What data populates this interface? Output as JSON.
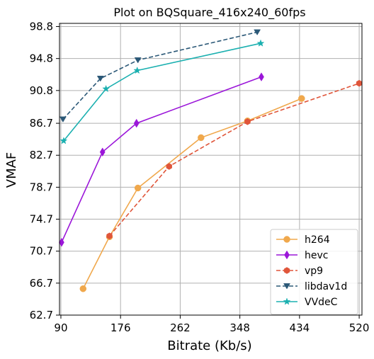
{
  "chart_data": {
    "type": "line",
    "title": "Plot on BQSquare_416x240_60fps",
    "xlabel": "Bitrate (Kb/s)",
    "ylabel": "VMAF",
    "xlim": [
      88,
      524
    ],
    "ylim": [
      62.7,
      99.2
    ],
    "xticks": [
      90,
      176,
      262,
      348,
      434,
      520
    ],
    "yticks": [
      62.7,
      66.7,
      70.7,
      74.7,
      78.7,
      82.7,
      86.7,
      90.8,
      94.8,
      98.8
    ],
    "xtick_labels": [
      "90",
      "176",
      "262",
      "348",
      "434",
      "520"
    ],
    "ytick_labels": [
      "62.7",
      "66.7",
      "70.7",
      "74.7",
      "78.7",
      "82.7",
      "86.7",
      "90.8",
      "94.8",
      "98.8"
    ],
    "grid": true,
    "legend_position": "lower right",
    "series": [
      {
        "name": "h264",
        "color": "#f0a84c",
        "line_style": "solid",
        "marker": "circle",
        "x": [
          122,
          160,
          201,
          292,
          359,
          437
        ],
        "y": [
          66.0,
          72.5,
          78.6,
          84.9,
          87.0,
          89.8
        ]
      },
      {
        "name": "hevc",
        "color": "#9b16d9",
        "line_style": "solid",
        "marker": "diamond",
        "x": [
          91,
          150,
          199,
          379
        ],
        "y": [
          71.8,
          83.1,
          86.7,
          92.5
        ]
      },
      {
        "name": "vp9",
        "color": "#e0553a",
        "line_style": "dashed",
        "marker": "hexagon",
        "x": [
          160,
          246,
          359,
          520
        ],
        "y": [
          72.6,
          81.3,
          86.9,
          91.7
        ]
      },
      {
        "name": "libdav1d",
        "color": "#2b5877",
        "line_style": "dashed",
        "marker": "triangle-down",
        "x": [
          93,
          147,
          201,
          373
        ],
        "y": [
          87.2,
          92.3,
          94.6,
          98.1
        ]
      },
      {
        "name": "VVdeC",
        "color": "#1bb0b0",
        "line_style": "solid",
        "marker": "star",
        "x": [
          94,
          155,
          200,
          378
        ],
        "y": [
          84.5,
          91.0,
          93.3,
          96.7
        ]
      }
    ]
  }
}
